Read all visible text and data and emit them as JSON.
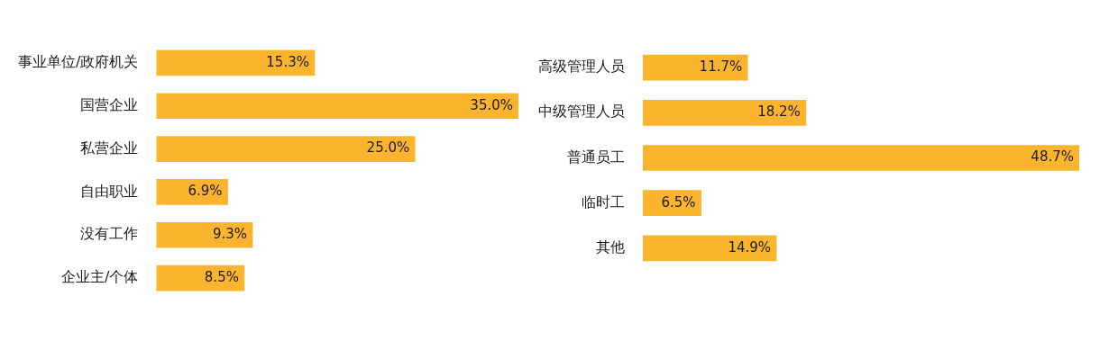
{
  "chart_data": [
    {
      "type": "bar",
      "orientation": "horizontal",
      "categories": [
        "事业单位/政府机关",
        "国营企业",
        "私营企业",
        "自由职业",
        "没有工作",
        "企业主/个体"
      ],
      "values": [
        15.3,
        35.0,
        25.0,
        6.9,
        9.3,
        8.5
      ],
      "color": "#fbb42e",
      "value_labels": [
        "15.3%",
        "35.0%",
        "25.0%",
        "6.9%",
        "9.3%",
        "8.5%"
      ]
    },
    {
      "type": "bar",
      "orientation": "horizontal",
      "categories": [
        "高级管理人员",
        "中级管理人员",
        "普通员工",
        "临时工",
        "其他"
      ],
      "values": [
        11.7,
        18.2,
        48.7,
        6.5,
        14.9
      ],
      "color": "#fbb42e",
      "value_labels": [
        "11.7%",
        "18.2%",
        "48.7%",
        "6.5%",
        "14.9%"
      ]
    }
  ]
}
